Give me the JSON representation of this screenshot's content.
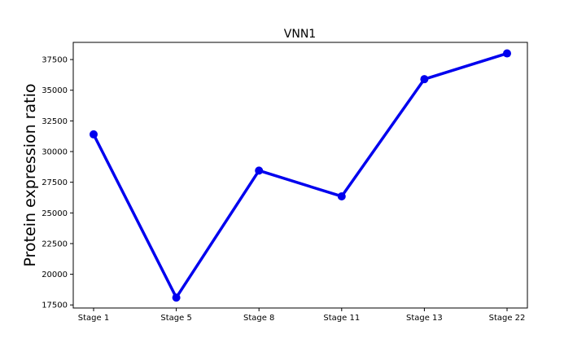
{
  "chart_data": {
    "type": "line",
    "title": "VNN1",
    "xlabel": "",
    "ylabel": "Protein expression ratio",
    "categories": [
      "Stage 1",
      "Stage 5",
      "Stage 8",
      "Stage 11",
      "Stage 13",
      "Stage 22"
    ],
    "series": [
      {
        "values": [
          31400,
          18100,
          28450,
          26350,
          35900,
          38000
        ]
      }
    ],
    "ylim": [
      17250,
      38900
    ],
    "yticks": [
      17500,
      20000,
      22500,
      25000,
      27500,
      30000,
      32500,
      35000,
      37500
    ],
    "ytick_labels": [
      "17500",
      "20000",
      "22500",
      "25000",
      "27500",
      "30000",
      "32500",
      "35000",
      "37500"
    ],
    "grid": false,
    "line_color": "#0000ee",
    "marker": "circle"
  }
}
